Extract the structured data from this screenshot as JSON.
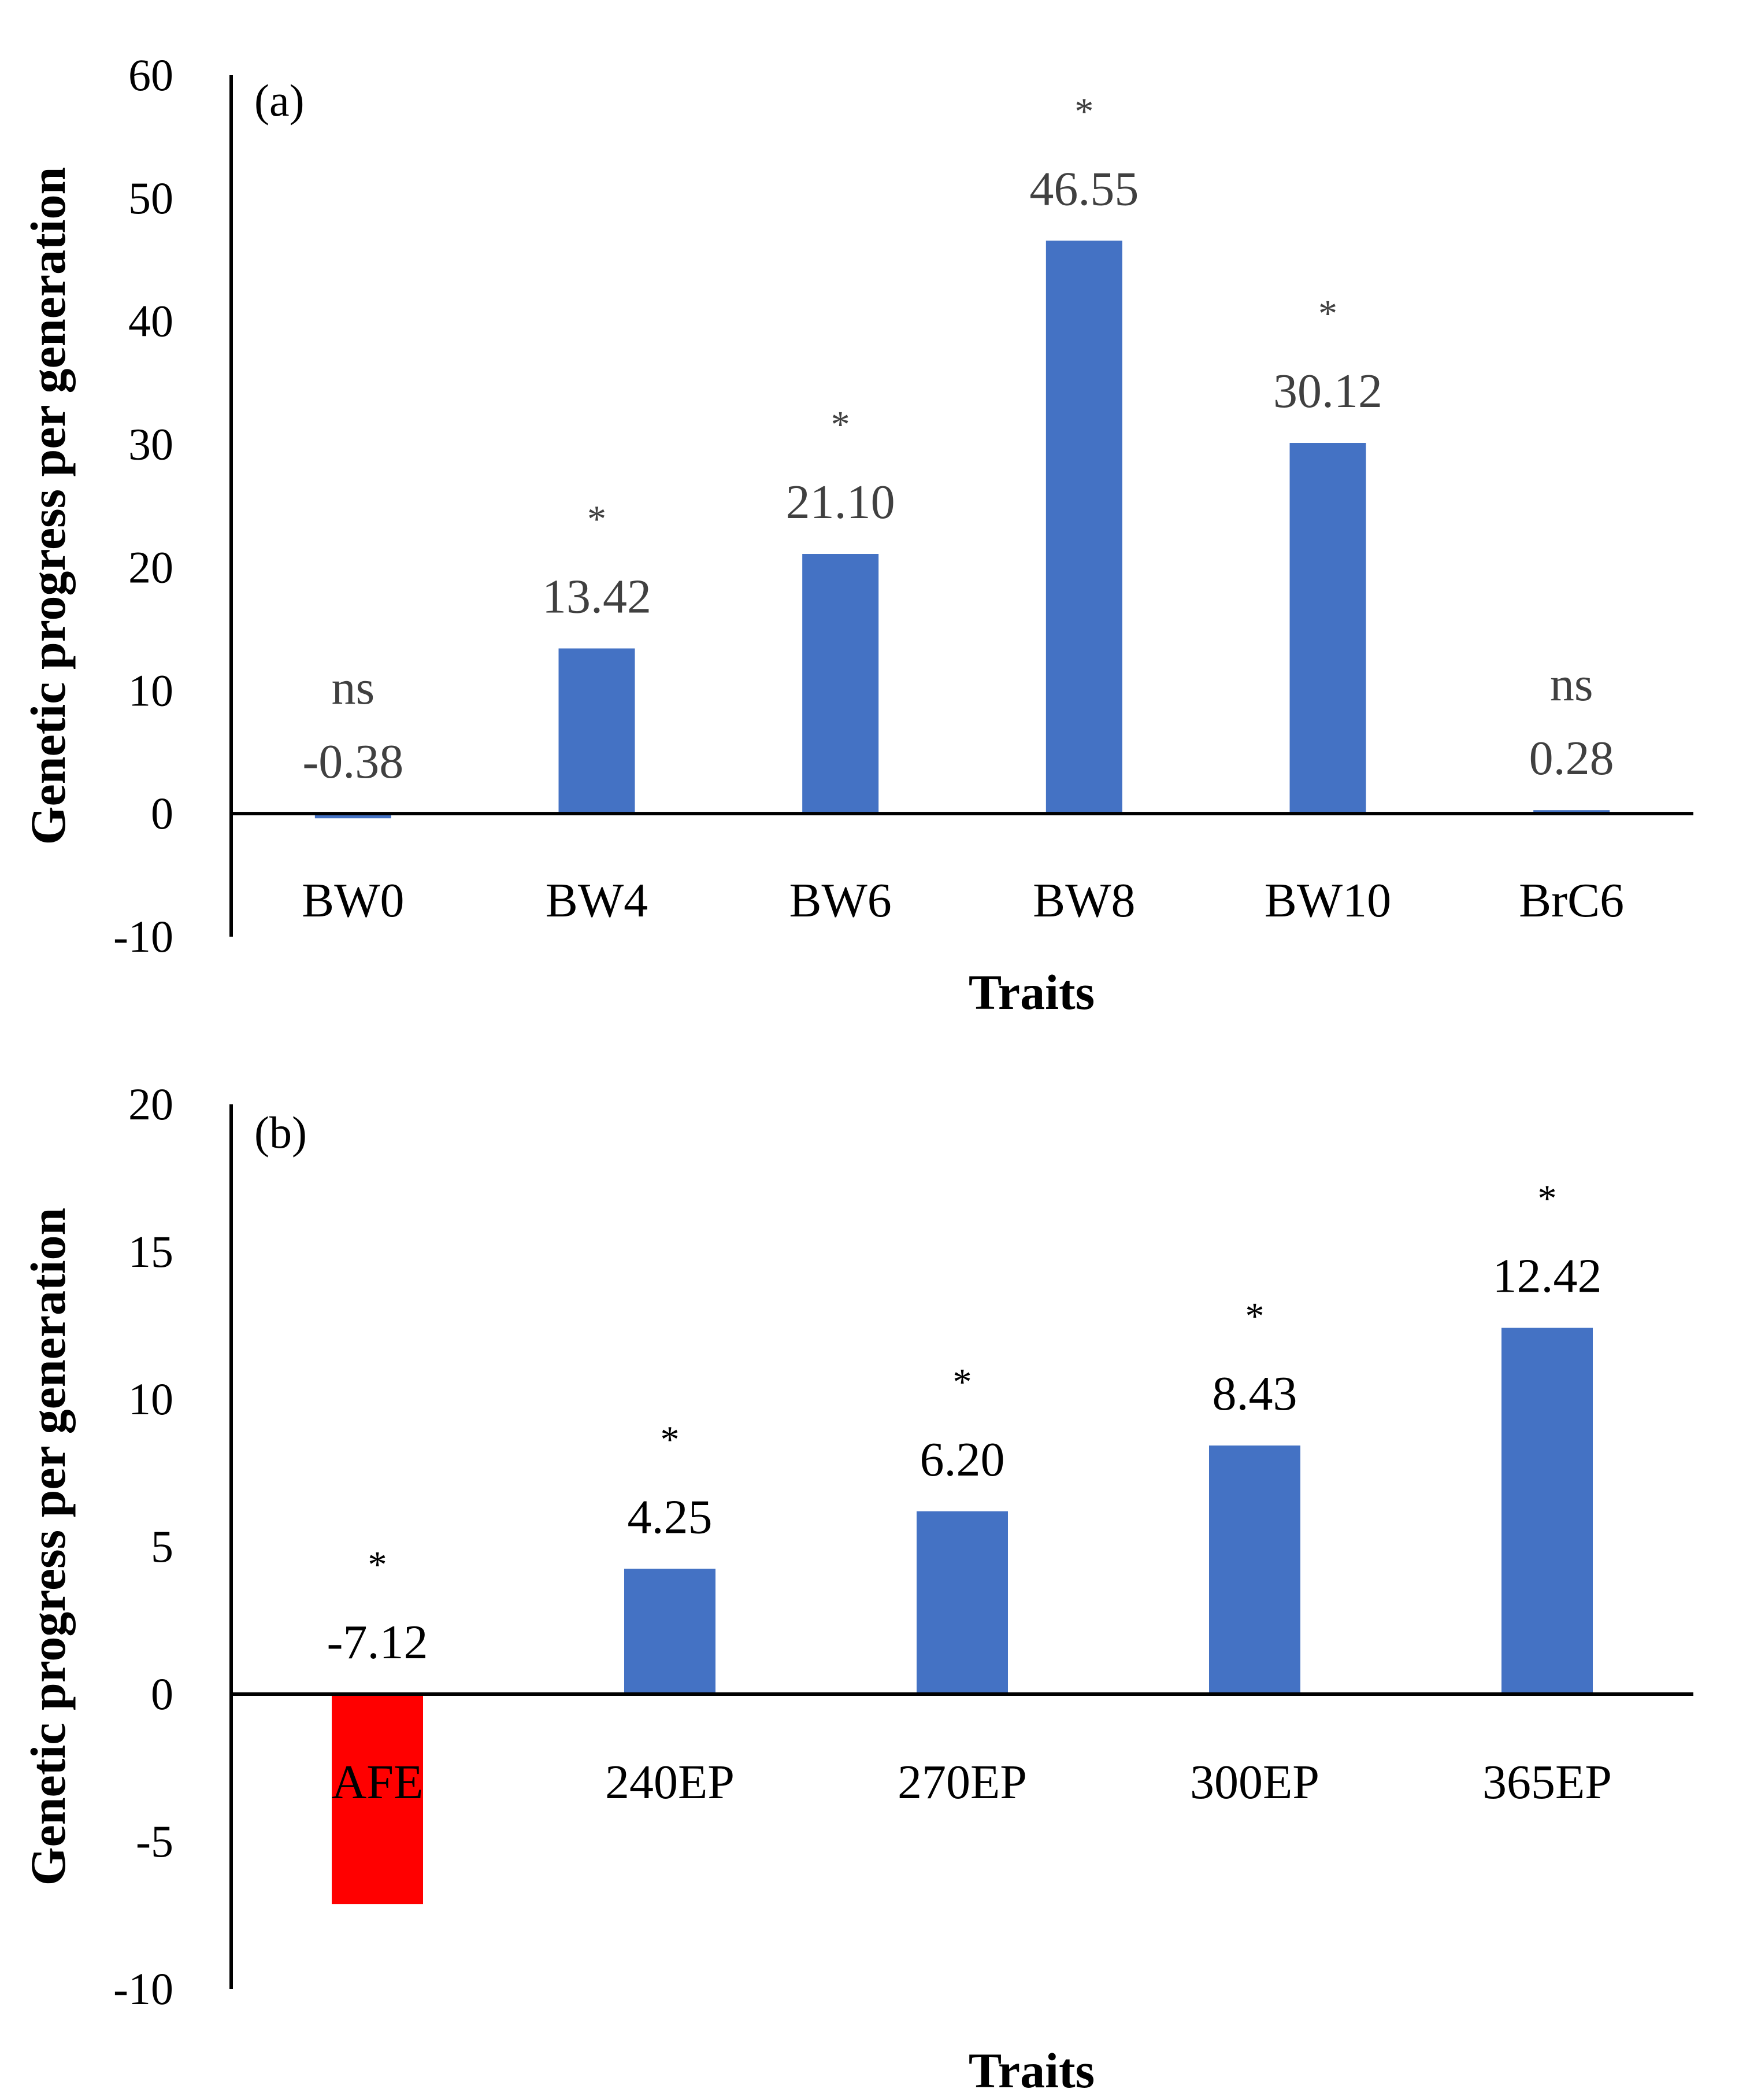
{
  "chart_data": [
    {
      "type": "bar",
      "panel_label": "(a)",
      "xlabel": "Traits",
      "ylabel": "Genetic progress per generation",
      "ylim": [
        -10,
        60
      ],
      "yticks": [
        -10,
        0,
        10,
        20,
        30,
        40,
        50,
        60
      ],
      "categories": [
        "BW0",
        "BW4",
        "BW6",
        "BW8",
        "BW10",
        "BrC6"
      ],
      "values": [
        -0.38,
        13.42,
        21.1,
        46.55,
        30.12,
        0.28
      ],
      "value_labels": [
        "-0.38",
        "13.42",
        "21.10",
        "46.55",
        "30.12",
        "0.28"
      ],
      "significance": [
        "ns",
        "*",
        "*",
        "*",
        "*",
        "ns"
      ],
      "colors": [
        "#4472C4",
        "#4472C4",
        "#4472C4",
        "#4472C4",
        "#4472C4",
        "#4472C4"
      ],
      "label_color": "#404040",
      "grid": false
    },
    {
      "type": "bar",
      "panel_label": "(b)",
      "xlabel": "Traits",
      "ylabel": "Genetic progress per generation",
      "ylim": [
        -10,
        20
      ],
      "yticks": [
        -10,
        -5,
        0,
        5,
        10,
        15,
        20
      ],
      "categories": [
        "AFE",
        "240EP",
        "270EP",
        "300EP",
        "365EP"
      ],
      "values": [
        -7.12,
        4.25,
        6.2,
        8.43,
        12.42
      ],
      "value_labels": [
        "-7.12",
        "4.25",
        "6.20",
        "8.43",
        "12.42"
      ],
      "significance": [
        "*",
        "*",
        "*",
        "*",
        "*"
      ],
      "colors": [
        "#FF0000",
        "#4472C4",
        "#4472C4",
        "#4472C4",
        "#4472C4"
      ],
      "label_color": "#000000",
      "grid": false
    }
  ]
}
